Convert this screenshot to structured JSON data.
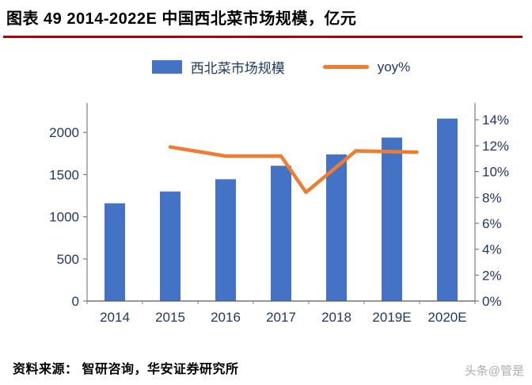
{
  "title": "图表 49 2014-2022E 中国西北菜市场规模，亿元",
  "legend": [
    {
      "label": "西北菜市场规模",
      "type": "bar"
    },
    {
      "label": "yoy%",
      "type": "line"
    }
  ],
  "source": "资料来源：  智研咨询，华安证券研究所",
  "watermark": "头条@管是",
  "colors": {
    "bar": "#4472C4",
    "line": "#ED7D31",
    "axis_text": "#1F3864",
    "axis_line": "#7F7F7F",
    "title_rule": "#B40000"
  },
  "chart_data": {
    "type": "bar+line",
    "title": "2014-2022E 中国西北菜市场规模，亿元",
    "categories": [
      "2014",
      "2015",
      "2016",
      "2017",
      "2018",
      "2019E",
      "2020E"
    ],
    "series": [
      {
        "name": "西北菜市场规模",
        "type": "bar",
        "axis": "left",
        "unit": "亿元",
        "values": [
          1160,
          1300,
          1445,
          1605,
          1740,
          1940,
          2165
        ]
      },
      {
        "name": "yoy%",
        "type": "line",
        "axis": "right",
        "unit": "%",
        "points": [
          {
            "x": 2015,
            "y": 11.9
          },
          {
            "x": 2016,
            "y": 11.2
          },
          {
            "x": 2017,
            "y": 11.2
          },
          {
            "x": 2017.45,
            "y": 8.4
          },
          {
            "x": 2018.35,
            "y": 11.6
          },
          {
            "x": 2019.45,
            "y": 11.5
          }
        ]
      }
    ],
    "left_axis": {
      "ticks": [
        0,
        500,
        1000,
        1500,
        2000
      ],
      "range": [
        0,
        2350
      ]
    },
    "right_axis": {
      "ticks": [
        0,
        2,
        4,
        6,
        8,
        10,
        12,
        14
      ],
      "suffix": "%",
      "range": [
        0,
        15.3
      ]
    },
    "grid": false,
    "legend_position": "top"
  }
}
